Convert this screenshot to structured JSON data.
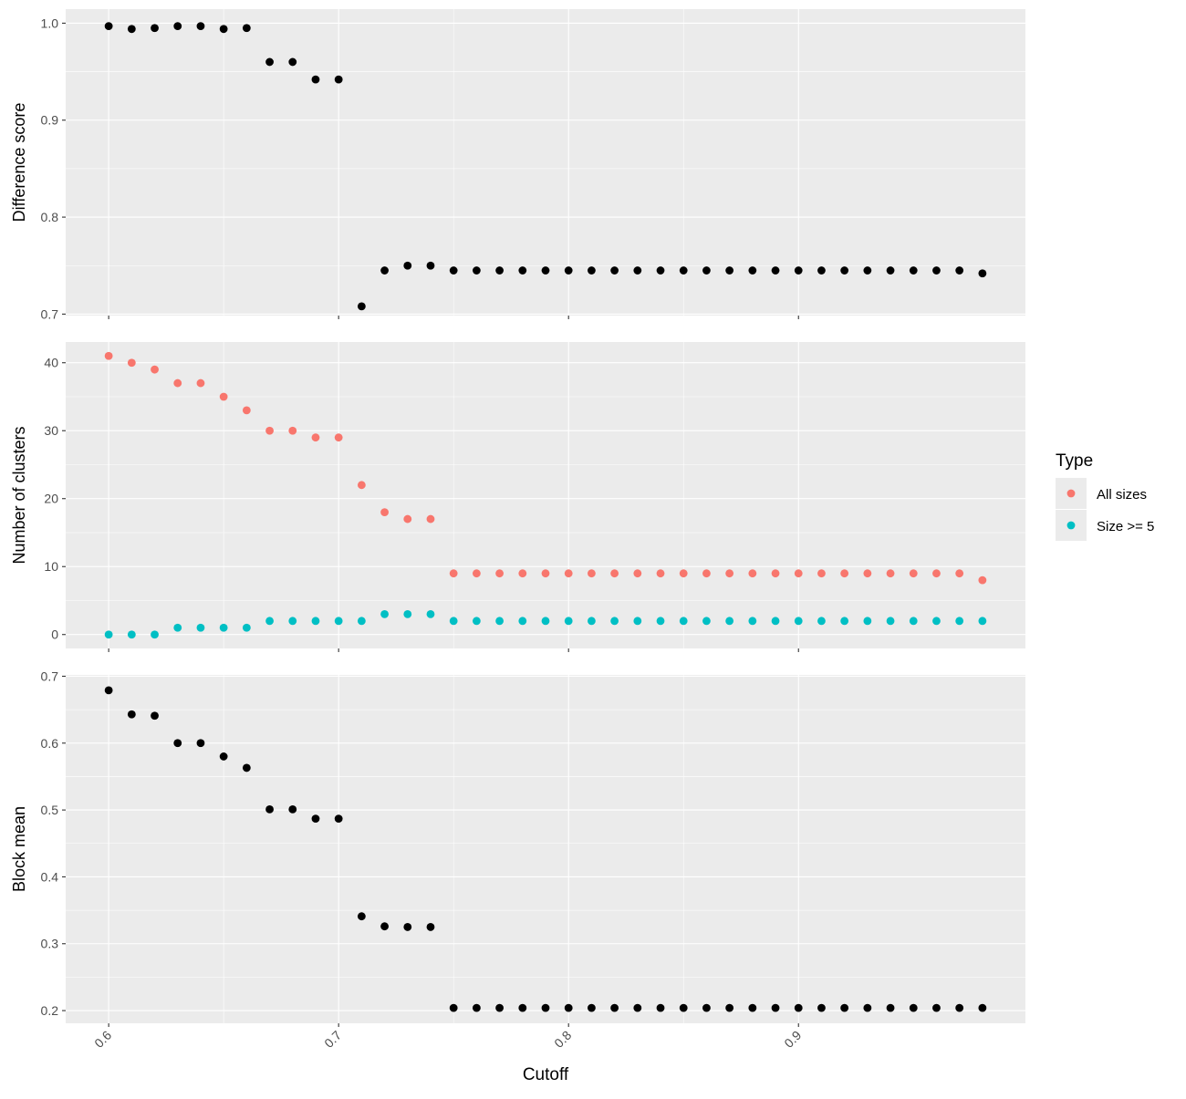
{
  "chart_data": {
    "type": "scatter",
    "x_label": "Cutoff",
    "x_range": [
      0.5813,
      0.9987
    ],
    "x_ticks": [
      0.6,
      0.7,
      0.8,
      0.9
    ],
    "x_tick_labels": [
      "0.6",
      "0.7",
      "0.8",
      "0.9"
    ],
    "x": [
      0.6,
      0.61,
      0.62,
      0.63,
      0.64,
      0.65,
      0.66,
      0.67,
      0.68,
      0.69,
      0.7,
      0.71,
      0.72,
      0.73,
      0.74,
      0.75,
      0.76,
      0.77,
      0.78,
      0.79,
      0.8,
      0.81,
      0.82,
      0.83,
      0.84,
      0.85,
      0.86,
      0.87,
      0.88,
      0.89,
      0.9,
      0.91,
      0.92,
      0.93,
      0.94,
      0.95,
      0.96,
      0.97,
      0.98
    ],
    "grid": true,
    "legend": {
      "title": "Type",
      "position": "right",
      "entries": [
        {
          "label": "All sizes",
          "color": "#F8766D"
        },
        {
          "label": "Size >= 5",
          "color": "#00BFC4"
        }
      ]
    },
    "panels": [
      {
        "ylabel": "Difference score",
        "ylim": [
          0.6985,
          1.0145
        ],
        "yticks": [
          0.7,
          0.8,
          0.9,
          1.0
        ],
        "ytick_labels": [
          "0.7",
          "0.8",
          "0.9",
          "1.0"
        ],
        "series": [
          {
            "color": "#000000",
            "values": [
              0.997,
              0.994,
              0.995,
              0.997,
              0.997,
              0.994,
              0.995,
              0.96,
              0.96,
              0.942,
              0.942,
              0.708,
              0.745,
              0.75,
              0.75,
              0.745,
              0.745,
              0.745,
              0.745,
              0.745,
              0.745,
              0.745,
              0.745,
              0.745,
              0.745,
              0.745,
              0.745,
              0.745,
              0.745,
              0.745,
              0.745,
              0.745,
              0.745,
              0.745,
              0.745,
              0.745,
              0.745,
              0.745,
              0.742
            ]
          }
        ]
      },
      {
        "ylabel": "Number of clusters",
        "ylim": [
          -2.05,
          43.05
        ],
        "yticks": [
          0,
          10,
          20,
          30,
          40
        ],
        "ytick_labels": [
          "0",
          "10",
          "20",
          "30",
          "40"
        ],
        "series": [
          {
            "name": "All sizes",
            "color": "#F8766D",
            "values": [
              41,
              40,
              39,
              37,
              37,
              35,
              33,
              30,
              30,
              29,
              29,
              22,
              18,
              17,
              17,
              9,
              9,
              9,
              9,
              9,
              9,
              9,
              9,
              9,
              9,
              9,
              9,
              9,
              9,
              9,
              9,
              9,
              9,
              9,
              9,
              9,
              9,
              9,
              8
            ]
          },
          {
            "name": "Size >= 5",
            "color": "#00BFC4",
            "values": [
              0,
              0,
              0,
              1,
              1,
              1,
              1,
              2,
              2,
              2,
              2,
              2,
              3,
              3,
              3,
              2,
              2,
              2,
              2,
              2,
              2,
              2,
              2,
              2,
              2,
              2,
              2,
              2,
              2,
              2,
              2,
              2,
              2,
              2,
              2,
              2,
              2,
              2,
              2
            ]
          }
        ]
      },
      {
        "ylabel": "Block mean",
        "ylim": [
          0.181,
          0.702
        ],
        "yticks": [
          0.2,
          0.3,
          0.4,
          0.5,
          0.6,
          0.7
        ],
        "ytick_labels": [
          "0.2",
          "0.3",
          "0.4",
          "0.5",
          "0.6",
          "0.7"
        ],
        "series": [
          {
            "color": "#000000",
            "values": [
              0.679,
              0.643,
              0.641,
              0.6,
              0.6,
              0.58,
              0.563,
              0.501,
              0.501,
              0.487,
              0.487,
              0.341,
              0.326,
              0.325,
              0.325,
              0.204,
              0.204,
              0.204,
              0.204,
              0.204,
              0.204,
              0.204,
              0.204,
              0.204,
              0.204,
              0.204,
              0.204,
              0.204,
              0.204,
              0.204,
              0.204,
              0.204,
              0.204,
              0.204,
              0.204,
              0.204,
              0.204,
              0.204,
              0.204
            ]
          }
        ]
      }
    ]
  }
}
